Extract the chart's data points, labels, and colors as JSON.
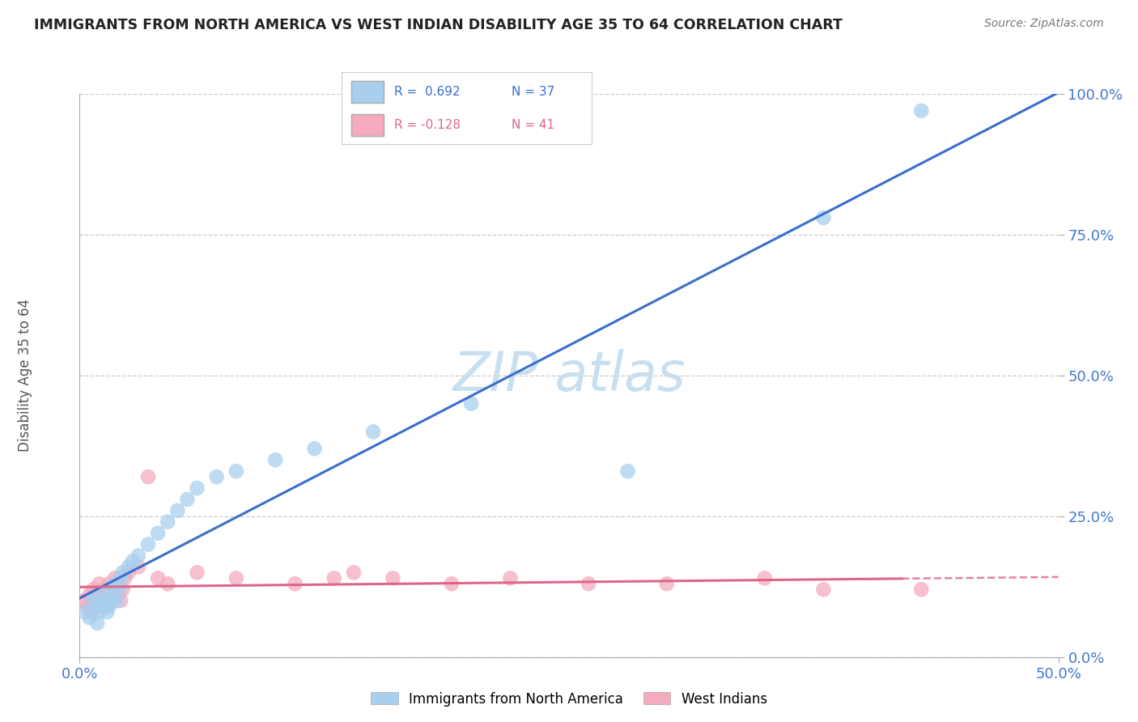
{
  "title": "IMMIGRANTS FROM NORTH AMERICA VS WEST INDIAN DISABILITY AGE 35 TO 64 CORRELATION CHART",
  "source": "Source: ZipAtlas.com",
  "ylabel": "Disability Age 35 to 64",
  "xmin": 0.0,
  "xmax": 0.5,
  "ymin": 0.0,
  "ymax": 1.0,
  "ytick_labels": [
    "0.0%",
    "25.0%",
    "50.0%",
    "75.0%",
    "100.0%"
  ],
  "ytick_vals": [
    0.0,
    0.25,
    0.5,
    0.75,
    1.0
  ],
  "xtick_labels": [
    "0.0%",
    "50.0%"
  ],
  "xtick_vals": [
    0.0,
    0.5
  ],
  "legend_r1": "R =  0.692",
  "legend_n1": "N = 37",
  "legend_r2": "R = -0.128",
  "legend_n2": "N = 41",
  "blue_color": "#A8CFEE",
  "pink_color": "#F4ABBE",
  "blue_line_color": "#3B6ECC",
  "pink_line_color": "#DD6688",
  "title_color": "#222222",
  "axis_label_color": "#4477CC",
  "watermark_color": "#C8DFF0",
  "blue_scatter_x": [
    0.003,
    0.005,
    0.007,
    0.008,
    0.009,
    0.01,
    0.01,
    0.012,
    0.013,
    0.014,
    0.015,
    0.015,
    0.016,
    0.017,
    0.018,
    0.019,
    0.02,
    0.021,
    0.022,
    0.025,
    0.027,
    0.03,
    0.035,
    0.04,
    0.045,
    0.05,
    0.055,
    0.06,
    0.07,
    0.08,
    0.1,
    0.12,
    0.15,
    0.2,
    0.28,
    0.38,
    0.43
  ],
  "blue_scatter_y": [
    0.08,
    0.07,
    0.1,
    0.09,
    0.06,
    0.11,
    0.08,
    0.09,
    0.1,
    0.08,
    0.12,
    0.09,
    0.11,
    0.1,
    0.13,
    0.1,
    0.12,
    0.14,
    0.15,
    0.16,
    0.17,
    0.18,
    0.2,
    0.22,
    0.24,
    0.26,
    0.28,
    0.3,
    0.32,
    0.33,
    0.35,
    0.37,
    0.4,
    0.45,
    0.33,
    0.78,
    0.97
  ],
  "pink_scatter_x": [
    0.002,
    0.004,
    0.005,
    0.006,
    0.007,
    0.008,
    0.009,
    0.01,
    0.01,
    0.011,
    0.012,
    0.013,
    0.014,
    0.015,
    0.015,
    0.016,
    0.017,
    0.018,
    0.019,
    0.02,
    0.021,
    0.022,
    0.023,
    0.025,
    0.03,
    0.035,
    0.04,
    0.045,
    0.06,
    0.08,
    0.11,
    0.13,
    0.14,
    0.16,
    0.19,
    0.22,
    0.26,
    0.3,
    0.35,
    0.38,
    0.43
  ],
  "pink_scatter_y": [
    0.1,
    0.09,
    0.11,
    0.08,
    0.12,
    0.1,
    0.09,
    0.11,
    0.13,
    0.1,
    0.12,
    0.11,
    0.09,
    0.13,
    0.11,
    0.1,
    0.12,
    0.14,
    0.11,
    0.13,
    0.1,
    0.12,
    0.14,
    0.15,
    0.16,
    0.32,
    0.14,
    0.13,
    0.15,
    0.14,
    0.13,
    0.14,
    0.15,
    0.14,
    0.13,
    0.14,
    0.13,
    0.13,
    0.14,
    0.12,
    0.12
  ]
}
